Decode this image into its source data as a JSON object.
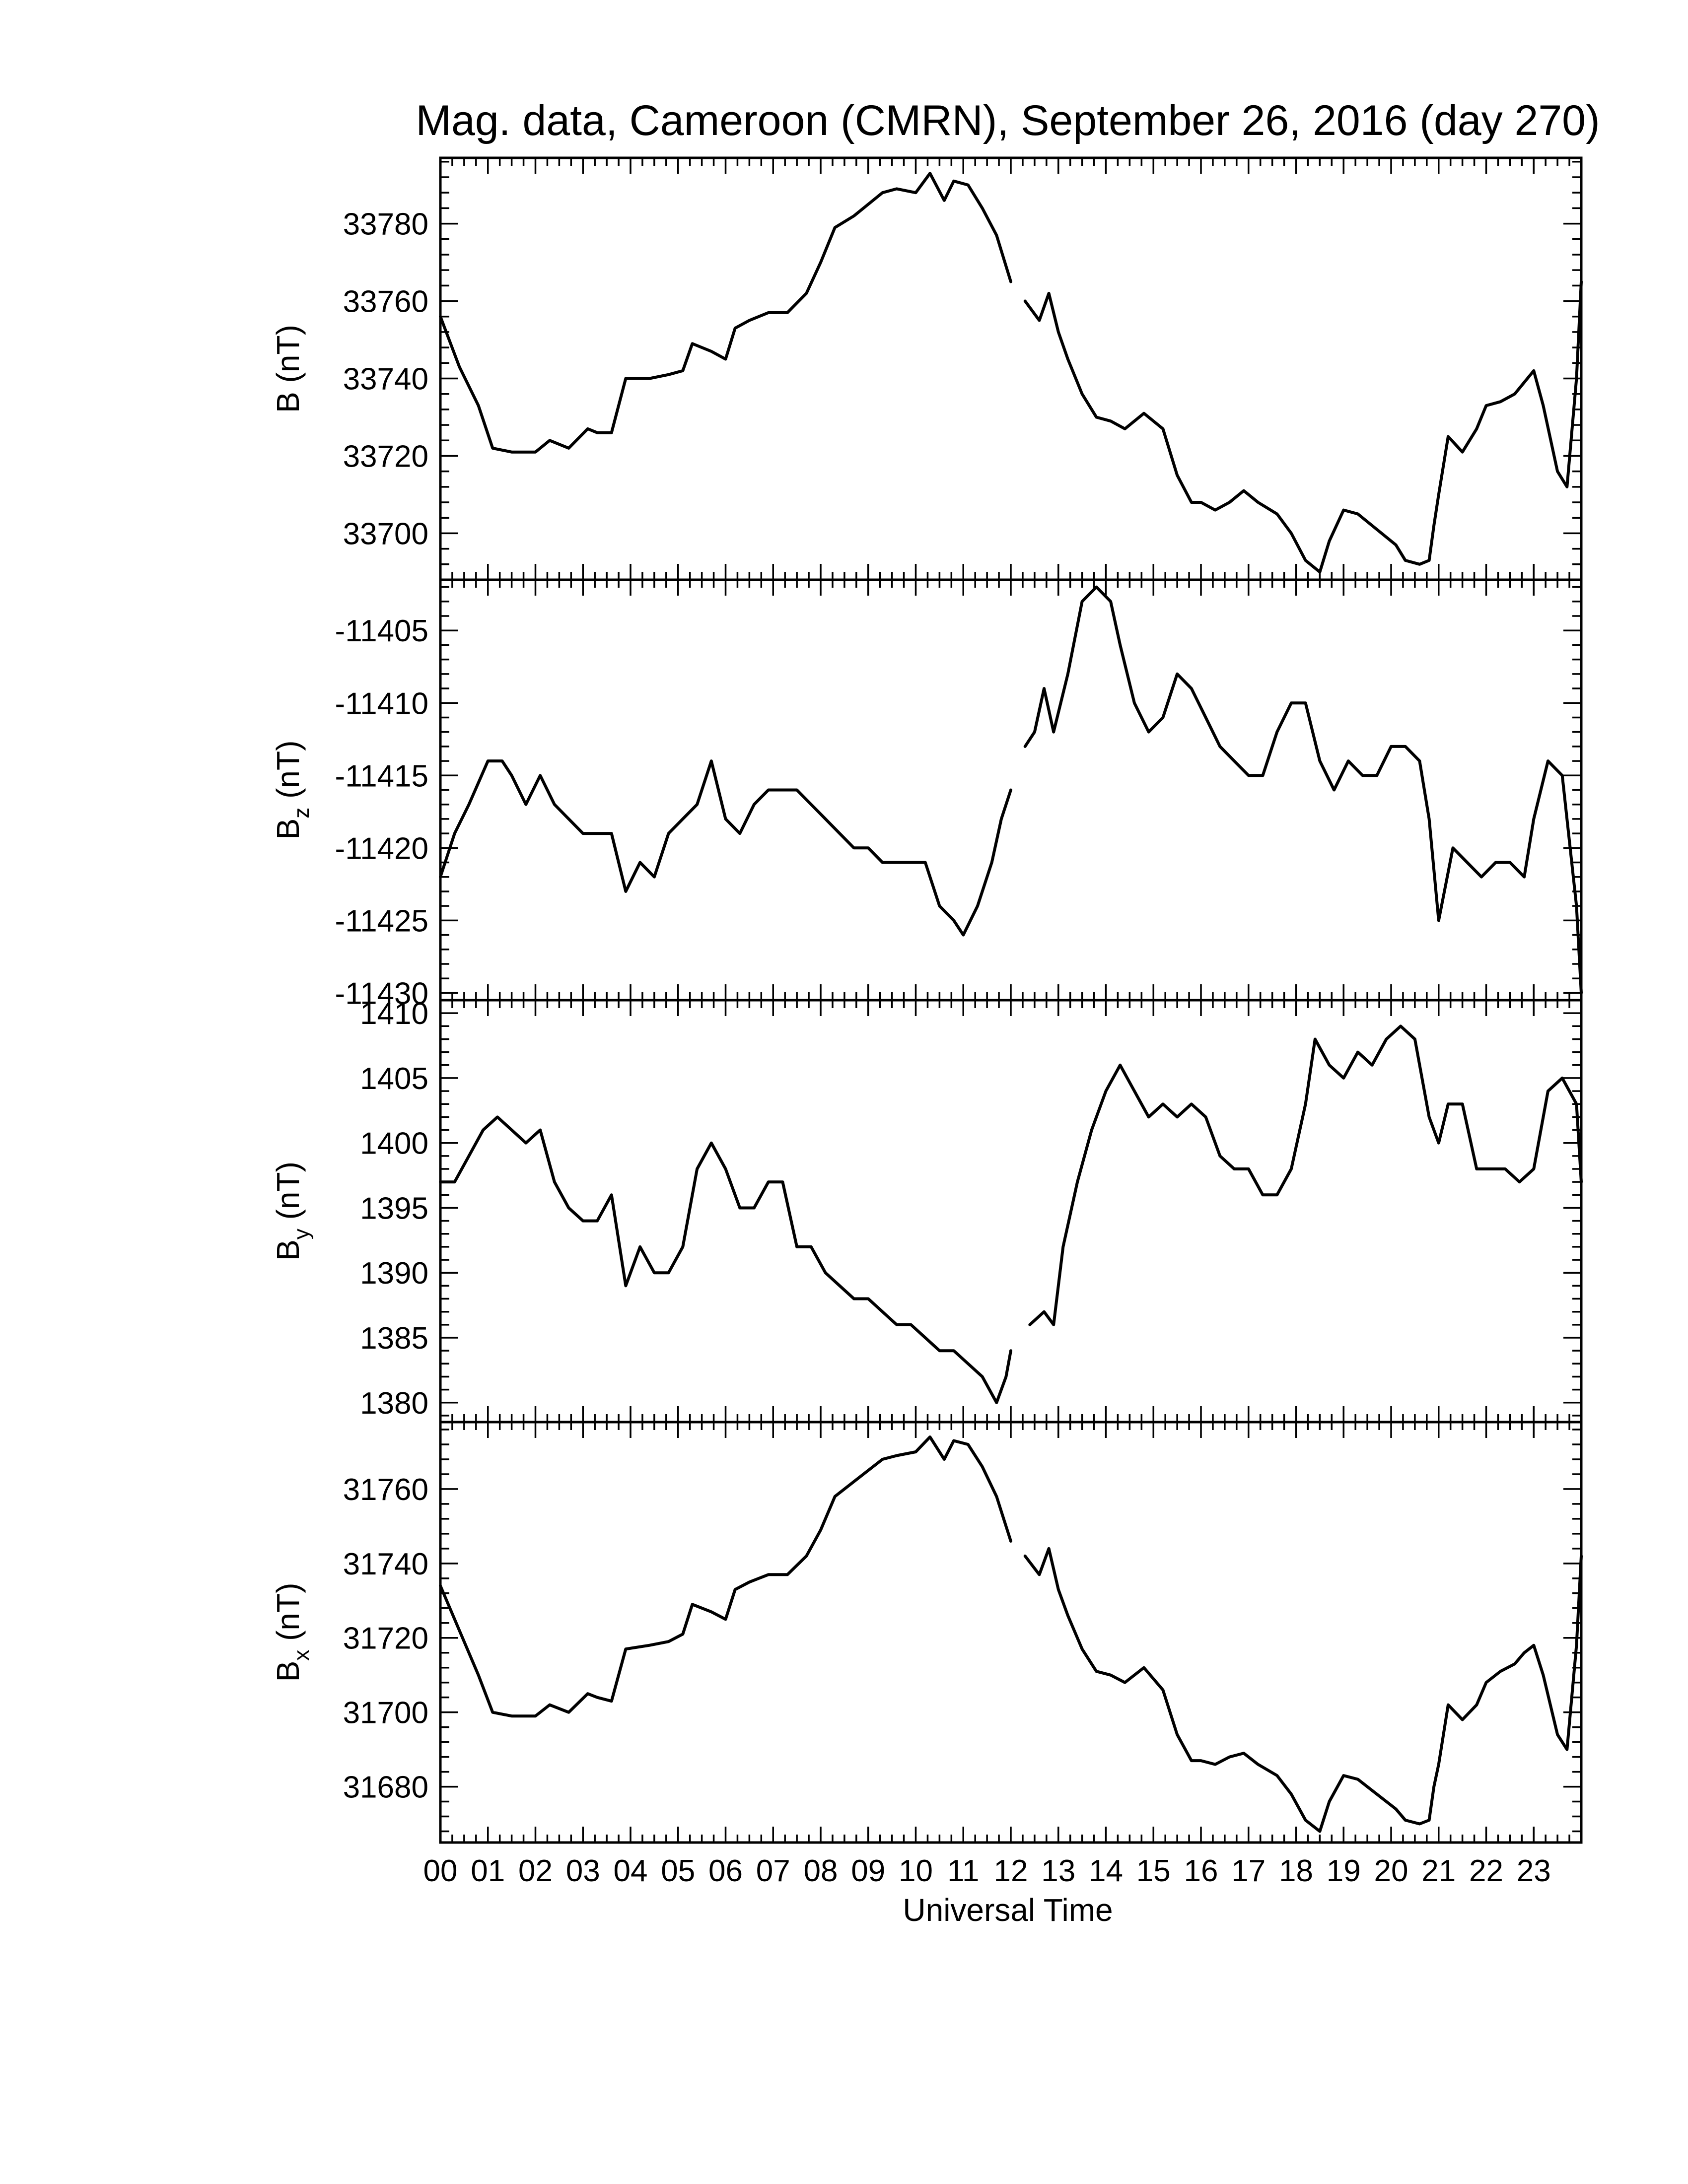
{
  "chart_data": {
    "type": "line",
    "title": "Mag. data, Cameroon (CMRN), September 26, 2016 (day 270)",
    "xlabel": "Universal Time",
    "x_ticks": [
      "00",
      "01",
      "02",
      "03",
      "04",
      "05",
      "06",
      "07",
      "08",
      "09",
      "10",
      "11",
      "12",
      "13",
      "14",
      "15",
      "16",
      "17",
      "18",
      "19",
      "20",
      "21",
      "22",
      "23"
    ],
    "xlim": [
      0,
      24
    ],
    "grid": false,
    "panels": [
      {
        "name": "B",
        "ylabel_main": "B",
        "ylabel_sub": "",
        "ylabel_unit": "(nT)",
        "ylim": [
          33688,
          33797
        ],
        "y_ticks": [
          33700,
          33720,
          33740,
          33760,
          33780
        ],
        "segments": [
          {
            "x": [
              0.0,
              0.4,
              0.8,
              1.1,
              1.5,
              2.0,
              2.3,
              2.7,
              3.1,
              3.3,
              3.6,
              3.9,
              4.4,
              4.8,
              5.1,
              5.3,
              5.7,
              6.0,
              6.2,
              6.5,
              6.9,
              7.3,
              7.7,
              8.0,
              8.3,
              8.7,
              9.0,
              9.3,
              9.6,
              10.0,
              10.3,
              10.6,
              10.8,
              11.1,
              11.4,
              11.7,
              11.9,
              12.0
            ],
            "y": [
              33756,
              33743,
              33733,
              33722,
              33721,
              33721,
              33724,
              33722,
              33727,
              33726,
              33726,
              33740,
              33740,
              33741,
              33742,
              33749,
              33747,
              33745,
              33753,
              33755,
              33757,
              33757,
              33762,
              33770,
              33779,
              33782,
              33785,
              33788,
              33789,
              33788,
              33793,
              33786,
              33791,
              33790,
              33784,
              33777,
              33769,
              33765
            ]
          },
          {
            "x": [
              12.3,
              12.6,
              12.8,
              13.0,
              13.2,
              13.5,
              13.8,
              14.1,
              14.4,
              14.8,
              15.2,
              15.5,
              15.8,
              16.0,
              16.3,
              16.6,
              16.9,
              17.2,
              17.6,
              17.9,
              18.2,
              18.5,
              18.7,
              19.0,
              19.3,
              19.6,
              19.9,
              20.1,
              20.3,
              20.6,
              20.8,
              20.9,
              21.0,
              21.2,
              21.5,
              21.8,
              22.0,
              22.3,
              22.6,
              22.8,
              23.0,
              23.2,
              23.5,
              23.7,
              23.9,
              24.0
            ],
            "y": [
              33760,
              33755,
              33762,
              33752,
              33745,
              33736,
              33730,
              33729,
              33727,
              33731,
              33727,
              33715,
              33708,
              33708,
              33706,
              33708,
              33711,
              33708,
              33705,
              33700,
              33693,
              33690,
              33698,
              33706,
              33705,
              33702,
              33699,
              33697,
              33693,
              33692,
              33693,
              33702,
              33710,
              33725,
              33721,
              33727,
              33733,
              33734,
              33736,
              33739,
              33742,
              33733,
              33716,
              33712,
              33740,
              33765
            ]
          }
        ]
      },
      {
        "name": "Bz",
        "ylabel_main": "B",
        "ylabel_sub": "z",
        "ylabel_unit": "(nT)",
        "ylim": [
          -11430.5,
          -11401.5
        ],
        "y_ticks": [
          -11405,
          -11410,
          -11415,
          -11420,
          -11425,
          -11430
        ],
        "segments": [
          {
            "x": [
              0.0,
              0.3,
              0.6,
              1.0,
              1.3,
              1.5,
              1.8,
              2.1,
              2.4,
              2.7,
              3.0,
              3.3,
              3.6,
              3.9,
              4.2,
              4.5,
              4.8,
              5.1,
              5.4,
              5.7,
              6.0,
              6.3,
              6.6,
              6.9,
              7.2,
              7.5,
              7.8,
              8.1,
              8.4,
              8.7,
              9.0,
              9.3,
              9.6,
              9.9,
              10.2,
              10.5,
              10.8,
              11.0,
              11.3,
              11.6,
              11.8,
              12.0
            ],
            "y": [
              -11422,
              -11419,
              -11417,
              -11414,
              -11414,
              -11415,
              -11417,
              -11415,
              -11417,
              -11418,
              -11419,
              -11419,
              -11419,
              -11423,
              -11421,
              -11422,
              -11419,
              -11418,
              -11417,
              -11414,
              -11418,
              -11419,
              -11417,
              -11416,
              -11416,
              -11416,
              -11417,
              -11418,
              -11419,
              -11420,
              -11420,
              -11421,
              -11421,
              -11421,
              -11421,
              -11424,
              -11425,
              -11426,
              -11424,
              -11421,
              -11418,
              -11416
            ]
          },
          {
            "x": [
              12.3,
              12.5,
              12.7,
              12.9,
              13.2,
              13.5,
              13.8,
              14.1,
              14.3,
              14.6,
              14.9,
              15.2,
              15.5,
              15.8,
              16.1,
              16.4,
              16.7,
              17.0,
              17.3,
              17.6,
              17.9,
              18.2,
              18.5,
              18.8,
              19.1,
              19.4,
              19.7,
              20.0,
              20.3,
              20.6,
              20.8,
              21.0,
              21.3,
              21.6,
              21.9,
              22.2,
              22.5,
              22.8,
              23.0,
              23.3,
              23.6,
              23.9,
              24.0
            ],
            "y": [
              -11413,
              -11412,
              -11409,
              -11412,
              -11408,
              -11403,
              -11402,
              -11403,
              -11406,
              -11410,
              -11412,
              -11411,
              -11408,
              -11409,
              -11411,
              -11413,
              -11414,
              -11415,
              -11415,
              -11412,
              -11410,
              -11410,
              -11414,
              -11416,
              -11414,
              -11415,
              -11415,
              -11413,
              -11413,
              -11414,
              -11418,
              -11425,
              -11420,
              -11421,
              -11422,
              -11421,
              -11421,
              -11422,
              -11418,
              -11414,
              -11415,
              -11424,
              -11430
            ]
          }
        ]
      },
      {
        "name": "By",
        "ylabel_main": "B",
        "ylabel_sub": "y",
        "ylabel_unit": "(nT)",
        "ylim": [
          1378.5,
          1411.0
        ],
        "y_ticks": [
          1380,
          1385,
          1390,
          1395,
          1400,
          1405,
          1410
        ],
        "segments": [
          {
            "x": [
              0.0,
              0.3,
              0.6,
              0.9,
              1.2,
              1.5,
              1.8,
              2.1,
              2.4,
              2.7,
              3.0,
              3.3,
              3.6,
              3.9,
              4.2,
              4.5,
              4.8,
              5.1,
              5.4,
              5.7,
              6.0,
              6.3,
              6.6,
              6.9,
              7.2,
              7.5,
              7.8,
              8.1,
              8.4,
              8.7,
              9.0,
              9.3,
              9.6,
              9.9,
              10.2,
              10.5,
              10.8,
              11.1,
              11.4,
              11.7,
              11.9,
              12.0
            ],
            "y": [
              1397,
              1397,
              1399,
              1401,
              1402,
              1401,
              1400,
              1401,
              1397,
              1395,
              1394,
              1394,
              1396,
              1389,
              1392,
              1390,
              1390,
              1392,
              1398,
              1400,
              1398,
              1395,
              1395,
              1397,
              1397,
              1392,
              1392,
              1390,
              1389,
              1388,
              1388,
              1387,
              1386,
              1386,
              1385,
              1384,
              1384,
              1383,
              1382,
              1380,
              1382,
              1384
            ]
          },
          {
            "x": [
              12.4,
              12.7,
              12.9,
              13.1,
              13.4,
              13.7,
              14.0,
              14.3,
              14.6,
              14.9,
              15.2,
              15.5,
              15.8,
              16.1,
              16.4,
              16.7,
              17.0,
              17.3,
              17.6,
              17.9,
              18.2,
              18.4,
              18.7,
              19.0,
              19.3,
              19.6,
              19.9,
              20.2,
              20.5,
              20.8,
              21.0,
              21.2,
              21.5,
              21.8,
              22.1,
              22.4,
              22.7,
              23.0,
              23.3,
              23.6,
              23.9,
              24.0
            ],
            "y": [
              1386,
              1387,
              1386,
              1392,
              1397,
              1401,
              1404,
              1406,
              1404,
              1402,
              1403,
              1402,
              1403,
              1402,
              1399,
              1398,
              1398,
              1396,
              1396,
              1398,
              1403,
              1408,
              1406,
              1405,
              1407,
              1406,
              1408,
              1409,
              1408,
              1402,
              1400,
              1403,
              1403,
              1398,
              1398,
              1398,
              1397,
              1398,
              1404,
              1405,
              1403,
              1397
            ]
          }
        ]
      },
      {
        "name": "Bx",
        "ylabel_main": "B",
        "ylabel_sub": "x",
        "ylabel_unit": "(nT)",
        "ylim": [
          31665,
          31778
        ],
        "y_ticks": [
          31680,
          31700,
          31720,
          31740,
          31760
        ],
        "segments": [
          {
            "x": [
              0.0,
              0.4,
              0.8,
              1.1,
              1.5,
              2.0,
              2.3,
              2.7,
              3.1,
              3.3,
              3.6,
              3.9,
              4.4,
              4.8,
              5.1,
              5.3,
              5.7,
              6.0,
              6.2,
              6.5,
              6.9,
              7.3,
              7.7,
              8.0,
              8.3,
              8.7,
              9.0,
              9.3,
              9.6,
              10.0,
              10.3,
              10.6,
              10.8,
              11.1,
              11.4,
              11.7,
              11.9,
              12.0
            ],
            "y": [
              31734,
              31722,
              31710,
              31700,
              31699,
              31699,
              31702,
              31700,
              31705,
              31704,
              31703,
              31717,
              31718,
              31719,
              31721,
              31729,
              31727,
              31725,
              31733,
              31735,
              31737,
              31737,
              31742,
              31749,
              31758,
              31762,
              31765,
              31768,
              31769,
              31770,
              31774,
              31768,
              31773,
              31772,
              31766,
              31758,
              31750,
              31746
            ]
          },
          {
            "x": [
              12.3,
              12.6,
              12.8,
              13.0,
              13.2,
              13.5,
              13.8,
              14.1,
              14.4,
              14.8,
              15.2,
              15.5,
              15.8,
              16.0,
              16.3,
              16.6,
              16.9,
              17.2,
              17.6,
              17.9,
              18.2,
              18.5,
              18.7,
              19.0,
              19.3,
              19.6,
              19.9,
              20.1,
              20.3,
              20.6,
              20.8,
              20.9,
              21.0,
              21.2,
              21.5,
              21.8,
              22.0,
              22.3,
              22.6,
              22.8,
              23.0,
              23.2,
              23.5,
              23.7,
              23.9,
              24.0
            ],
            "y": [
              31742,
              31737,
              31744,
              31733,
              31726,
              31717,
              31711,
              31710,
              31708,
              31712,
              31706,
              31694,
              31687,
              31687,
              31686,
              31688,
              31689,
              31686,
              31683,
              31678,
              31671,
              31668,
              31676,
              31683,
              31682,
              31679,
              31676,
              31674,
              31671,
              31670,
              31671,
              31680,
              31686,
              31702,
              31698,
              31702,
              31708,
              31711,
              31713,
              31716,
              31718,
              31710,
              31694,
              31690,
              31718,
              31742
            ]
          }
        ]
      }
    ]
  }
}
